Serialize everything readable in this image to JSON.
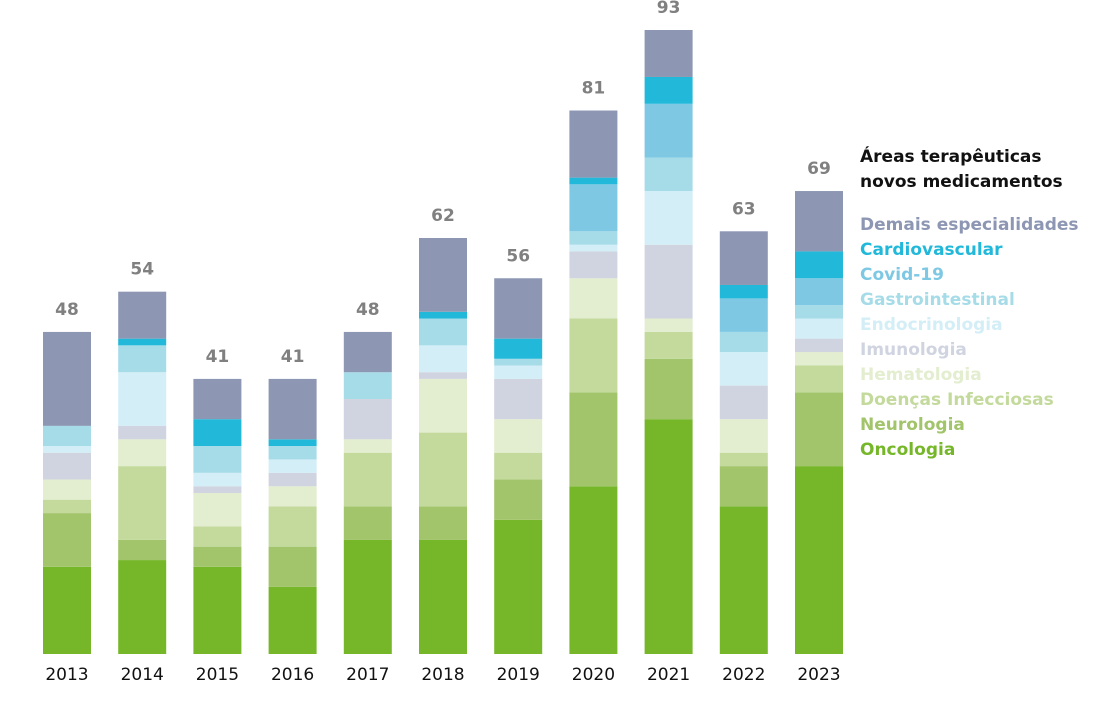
{
  "chart_data": {
    "type": "stacked_bar",
    "categories": [
      "2013",
      "2014",
      "2015",
      "2016",
      "2017",
      "2018",
      "2019",
      "2020",
      "2021",
      "2022",
      "2023"
    ],
    "totals": [
      48,
      54,
      41,
      41,
      48,
      62,
      56,
      81,
      93,
      63,
      69
    ],
    "legend_title": "Áreas terapêuticas novos medicamentos",
    "ylim": [
      0,
      93
    ],
    "series": [
      {
        "name": "Oncologia",
        "color": "#76b72a",
        "values": [
          13,
          14,
          13,
          10,
          17,
          17,
          20,
          25,
          35,
          22,
          28
        ]
      },
      {
        "name": "Neurologia",
        "color": "#a2c46a",
        "values": [
          8,
          3,
          3,
          6,
          5,
          5,
          6,
          14,
          9,
          6,
          11
        ]
      },
      {
        "name": "Doenças Infecciosas",
        "color": "#c3da9c",
        "values": [
          2,
          11,
          3,
          6,
          8,
          11,
          4,
          11,
          4,
          2,
          4
        ]
      },
      {
        "name": "Hematologia",
        "color": "#e3edcf",
        "values": [
          3,
          4,
          5,
          3,
          2,
          8,
          5,
          6,
          2,
          5,
          2
        ]
      },
      {
        "name": "Imunologia",
        "color": "#d0d4e0",
        "values": [
          4,
          2,
          1,
          2,
          6,
          1,
          6,
          4,
          11,
          5,
          2
        ]
      },
      {
        "name": "Endocrinologia",
        "color": "#d3eef6",
        "values": [
          1,
          8,
          2,
          2,
          0,
          4,
          2,
          1,
          8,
          5,
          3
        ]
      },
      {
        "name": "Gastrointestinal",
        "color": "#a6dbe8",
        "values": [
          3,
          4,
          4,
          2,
          4,
          4,
          1,
          2,
          5,
          3,
          2
        ]
      },
      {
        "name": "Covid-19",
        "color": "#7ec8e3",
        "values": [
          0,
          0,
          0,
          0,
          0,
          0,
          0,
          7,
          8,
          5,
          4
        ]
      },
      {
        "name": "Cardiovascular",
        "color": "#22b8d9",
        "values": [
          0,
          1,
          4,
          1,
          0,
          1,
          3,
          1,
          4,
          2,
          4
        ]
      },
      {
        "name": "Demais especialidades",
        "color": "#8d97b3",
        "values": [
          14,
          7,
          6,
          9,
          6,
          11,
          9,
          10,
          7,
          8,
          9
        ]
      }
    ]
  }
}
